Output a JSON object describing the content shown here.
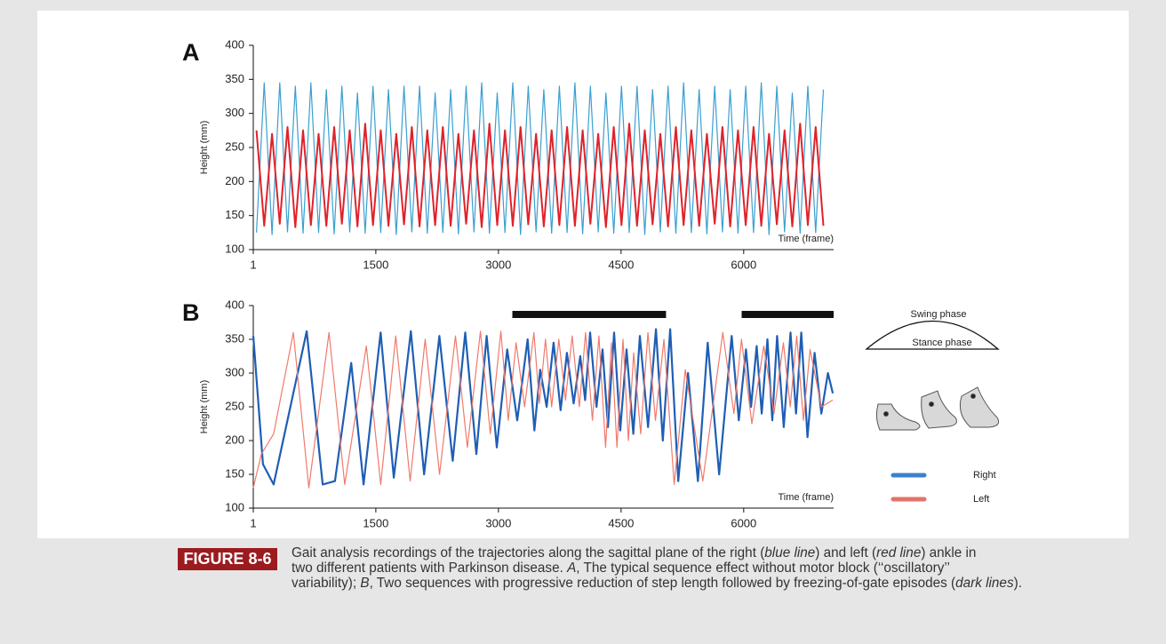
{
  "chart_data": [
    {
      "type": "line",
      "panel_label": "A",
      "ylabel": "Height (mm)",
      "xlabel": "Time (frame)",
      "xlim": [
        1,
        7100
      ],
      "ylim": [
        100,
        400
      ],
      "xticks": [
        1,
        1500,
        3000,
        4500,
        6000
      ],
      "yticks": [
        100,
        150,
        200,
        250,
        300,
        350,
        400
      ],
      "x": [
        40,
        135,
        230,
        325,
        420,
        515,
        610,
        705,
        800,
        895,
        990,
        1085,
        1180,
        1275,
        1370,
        1465,
        1560,
        1655,
        1750,
        1845,
        1940,
        2035,
        2130,
        2225,
        2320,
        2415,
        2510,
        2605,
        2700,
        2795,
        2890,
        2985,
        3080,
        3175,
        3270,
        3365,
        3460,
        3555,
        3650,
        3745,
        3840,
        3935,
        4030,
        4125,
        4220,
        4315,
        4410,
        4505,
        4600,
        4695,
        4790,
        4885,
        4980,
        5075,
        5170,
        5265,
        5360,
        5455,
        5550,
        5645,
        5740,
        5835,
        5930,
        6025,
        6120,
        6215,
        6310,
        6405,
        6500,
        6595,
        6690,
        6785,
        6880,
        6975
      ],
      "series": [
        {
          "color": "#3a9fd0",
          "width": 1.2,
          "values": [
            125,
            345,
            122,
            345,
            126,
            340,
            124,
            345,
            125,
            335,
            123,
            340,
            126,
            330,
            124,
            340,
            125,
            335,
            122,
            340,
            126,
            340,
            124,
            330,
            125,
            335,
            123,
            340,
            126,
            345,
            124,
            330,
            125,
            345,
            122,
            340,
            126,
            335,
            124,
            340,
            125,
            345,
            123,
            340,
            126,
            330,
            124,
            340,
            125,
            340,
            122,
            335,
            126,
            340,
            124,
            345,
            125,
            335,
            123,
            340,
            126,
            335,
            124,
            340,
            125,
            345,
            122,
            340,
            126,
            330,
            124,
            340,
            125,
            335
          ]
        },
        {
          "color": "#e0222a",
          "width": 2,
          "values": [
            275,
            135,
            270,
            138,
            280,
            133,
            275,
            136,
            270,
            135,
            280,
            138,
            275,
            134,
            285,
            136,
            275,
            135,
            270,
            137,
            280,
            134,
            275,
            136,
            280,
            135,
            270,
            138,
            275,
            133,
            285,
            136,
            275,
            135,
            280,
            137,
            270,
            134,
            275,
            136,
            280,
            135,
            275,
            138,
            270,
            133,
            280,
            136,
            285,
            135,
            275,
            137,
            270,
            134,
            280,
            136,
            275,
            135,
            270,
            138,
            280,
            134,
            275,
            136,
            280,
            135,
            270,
            137,
            275,
            134,
            285,
            136,
            280,
            135
          ]
        }
      ]
    },
    {
      "type": "line",
      "panel_label": "B",
      "ylabel": "Height (mm)",
      "xlabel": "Time (frame)",
      "xlim": [
        1,
        7100
      ],
      "ylim": [
        100,
        400
      ],
      "xticks": [
        1,
        1500,
        3000,
        4500,
        6000
      ],
      "yticks": [
        100,
        150,
        200,
        250,
        300,
        350,
        400
      ],
      "freeze_bars": [
        [
          3170,
          5050
        ],
        [
          5975,
          7100
        ]
      ],
      "bar_color": "#111111",
      "annotations": [
        "Swing phase",
        "Stance phase"
      ],
      "series": [
        {
          "name": "Right",
          "color": "#1f5eb4",
          "legend_color": "#3b82cc",
          "width": 2.2,
          "x": [
            1,
            120,
            250,
            654,
            850,
            1000,
            1199,
            1350,
            1559,
            1720,
            1929,
            2090,
            2278,
            2440,
            2594,
            2730,
            2856,
            2980,
            3107,
            3230,
            3357,
            3440,
            3510,
            3590,
            3674,
            3760,
            3837,
            3920,
            4001,
            4060,
            4121,
            4200,
            4273,
            4340,
            4415,
            4490,
            4567,
            4650,
            4730,
            4830,
            4927,
            5010,
            5101,
            5200,
            5319,
            5440,
            5559,
            5700,
            5853,
            5940,
            6028,
            6090,
            6159,
            6220,
            6290,
            6350,
            6409,
            6490,
            6573,
            6640,
            6704,
            6780,
            6867,
            6950,
            7030,
            7090
          ],
          "values": [
            355,
            165,
            135,
            362,
            135,
            140,
            315,
            135,
            360,
            145,
            362,
            150,
            355,
            170,
            360,
            180,
            355,
            190,
            335,
            230,
            350,
            215,
            305,
            250,
            345,
            245,
            330,
            255,
            325,
            260,
            360,
            250,
            335,
            220,
            360,
            215,
            335,
            210,
            355,
            220,
            365,
            200,
            365,
            140,
            300,
            140,
            345,
            150,
            355,
            230,
            335,
            250,
            340,
            240,
            350,
            230,
            355,
            220,
            360,
            240,
            360,
            205,
            330,
            240,
            300,
            270
          ]
        },
        {
          "name": "Left",
          "color": "#f07a6c",
          "legend_color": "#e2736a",
          "width": 1.2,
          "x": [
            1,
            100,
            250,
            491,
            680,
            927,
            1120,
            1384,
            1560,
            1744,
            1920,
            2104,
            2280,
            2474,
            2620,
            2780,
            2900,
            3030,
            3120,
            3216,
            3320,
            3434,
            3500,
            3575,
            3650,
            3739,
            3820,
            3902,
            3990,
            4066,
            4150,
            4229,
            4310,
            4382,
            4450,
            4524,
            4590,
            4654,
            4740,
            4829,
            4920,
            5025,
            5150,
            5286,
            5500,
            5744,
            5880,
            5973,
            6100,
            6246,
            6370,
            6486,
            6570,
            6649,
            6730,
            6812,
            6950,
            7090
          ],
          "values": [
            130,
            180,
            210,
            360,
            130,
            360,
            135,
            340,
            135,
            355,
            140,
            350,
            150,
            355,
            190,
            362,
            210,
            362,
            230,
            345,
            250,
            360,
            255,
            350,
            250,
            350,
            260,
            355,
            250,
            360,
            230,
            355,
            190,
            345,
            190,
            350,
            200,
            330,
            210,
            360,
            230,
            350,
            135,
            305,
            140,
            360,
            240,
            350,
            225,
            340,
            240,
            345,
            250,
            355,
            230,
            335,
            250,
            260
          ]
        }
      ]
    }
  ],
  "caption": {
    "label": "FIGURE 8-6",
    "lines": [
      [
        {
          "text": "Gait analysis recordings of the trajectories along the sagittal plane of the right (",
          "italic": false
        },
        {
          "text": "blue line",
          "italic": true
        },
        {
          "text": ") and left (",
          "italic": false
        },
        {
          "text": "red line",
          "italic": true
        },
        {
          "text": ") ankle in",
          "italic": false
        }
      ],
      [
        {
          "text": "two different patients with Parkinson disease. ",
          "italic": false
        },
        {
          "text": "A",
          "italic": true
        },
        {
          "text": ", The typical sequence effect without motor block (‘‘oscillatory’’",
          "italic": false
        }
      ],
      [
        {
          "text": "variability); ",
          "italic": false
        },
        {
          "text": "B",
          "italic": true
        },
        {
          "text": ", Two sequences with progressive reduction of step length followed by freezing-of-gate episodes (",
          "italic": false
        },
        {
          "text": "dark lines",
          "italic": true
        },
        {
          "text": ").",
          "italic": false
        }
      ]
    ]
  }
}
